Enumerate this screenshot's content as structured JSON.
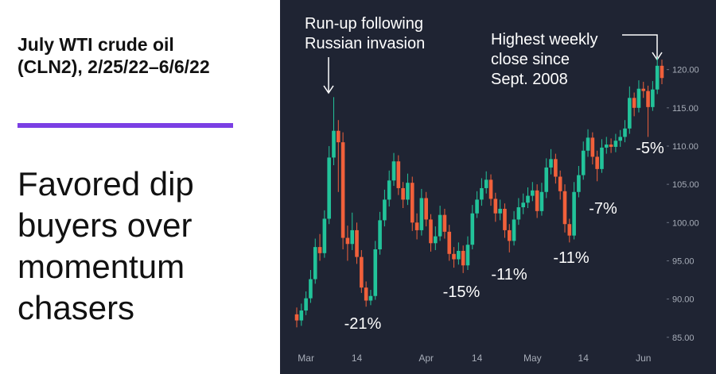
{
  "chart_data": {
    "type": "candlestick",
    "title": "July WTI crude oil (CLN2), 2/25/22–6/6/22",
    "subtitle": "Favored dip buyers over momentum chasers",
    "categories": [
      null,
      null,
      "Mar",
      null,
      null,
      null,
      null,
      null,
      null,
      null,
      null,
      null,
      null,
      "14",
      null,
      null,
      null,
      null,
      null,
      null,
      null,
      null,
      null,
      null,
      null,
      null,
      null,
      null,
      "Apr",
      null,
      null,
      null,
      null,
      null,
      null,
      null,
      null,
      null,
      null,
      "14",
      null,
      null,
      null,
      null,
      null,
      null,
      null,
      null,
      null,
      null,
      null,
      "May",
      null,
      null,
      null,
      null,
      null,
      null,
      null,
      null,
      null,
      null,
      "14",
      null,
      null,
      null,
      null,
      null,
      null,
      null,
      null,
      null,
      null,
      null,
      null,
      "Jun",
      null,
      null,
      null,
      null
    ],
    "open": [
      88.0,
      87.2,
      88.5,
      90.1,
      92.6,
      96.8,
      96.0,
      100.5,
      108.5,
      112.0,
      110.5,
      98.0,
      97.2,
      99.0,
      95.5,
      91.5,
      89.8,
      90.4,
      96.5,
      100.3,
      103.0,
      105.5,
      108.0,
      104.5,
      103.0,
      105.2,
      100.0,
      99.0,
      103.2,
      100.4,
      97.3,
      98.2,
      101.0,
      98.8,
      95.9,
      95.2,
      96.3,
      94.4,
      97.1,
      101.2,
      103.0,
      104.5,
      105.6,
      103.1,
      101.2,
      101.8,
      99.0,
      97.6,
      100.4,
      102.0,
      102.6,
      103.5,
      104.2,
      101.5,
      104.0,
      107.2,
      108.3,
      106.0,
      104.1,
      99.8,
      98.3,
      104.0,
      106.2,
      109.4,
      111.1,
      108.6,
      107.0,
      109.8,
      110.2,
      109.9,
      110.7,
      111.2,
      112.3,
      116.3,
      115.0,
      117.5,
      117.2,
      115.1,
      117.4,
      120.5
    ],
    "high": [
      88.9,
      89.4,
      91.0,
      93.8,
      97.9,
      98.5,
      101.6,
      110.0,
      116.4,
      113.4,
      111.8,
      99.6,
      101.3,
      100.0,
      96.4,
      92.3,
      91.2,
      97.6,
      101.4,
      104.3,
      106.8,
      109.1,
      108.8,
      105.3,
      106.4,
      106.0,
      101.2,
      104.4,
      104.0,
      101.1,
      99.5,
      102.2,
      101.8,
      99.7,
      96.8,
      97.4,
      97.0,
      98.2,
      102.3,
      104.1,
      105.8,
      106.7,
      106.3,
      103.9,
      103.0,
      102.5,
      99.8,
      101.5,
      103.2,
      103.8,
      104.6,
      105.3,
      105.0,
      105.2,
      108.4,
      109.6,
      109.0,
      106.8,
      105.0,
      100.5,
      105.3,
      107.4,
      110.6,
      112.2,
      111.8,
      109.4,
      110.9,
      111.2,
      111.0,
      111.6,
      112.1,
      113.4,
      117.8,
      117.0,
      118.6,
      118.4,
      117.9,
      118.5,
      121.6,
      121.3
    ],
    "low": [
      86.3,
      86.5,
      87.9,
      89.5,
      92.0,
      95.0,
      95.4,
      99.8,
      107.5,
      104.0,
      96.5,
      95.0,
      96.4,
      94.6,
      90.8,
      89.0,
      89.2,
      89.9,
      95.8,
      99.5,
      102.1,
      104.8,
      103.6,
      101.9,
      102.3,
      98.9,
      97.8,
      98.3,
      99.5,
      96.2,
      96.4,
      97.6,
      97.9,
      95.0,
      94.1,
      94.5,
      93.4,
      93.8,
      96.5,
      100.6,
      102.2,
      103.8,
      102.2,
      100.1,
      100.3,
      98.0,
      96.1,
      97.0,
      99.7,
      101.1,
      101.9,
      102.8,
      100.6,
      100.9,
      103.2,
      106.3,
      105.1,
      103.0,
      98.7,
      97.4,
      97.8,
      103.3,
      105.6,
      108.6,
      107.6,
      105.4,
      106.5,
      109.0,
      109.1,
      109.2,
      109.9,
      110.5,
      111.6,
      113.9,
      114.4,
      116.3,
      111.2,
      114.6,
      116.8,
      118.1
    ],
    "close": [
      87.2,
      88.5,
      90.1,
      92.6,
      96.8,
      96.0,
      100.5,
      108.5,
      112.0,
      110.5,
      98.0,
      97.2,
      99.0,
      95.5,
      91.5,
      89.8,
      90.4,
      96.5,
      100.3,
      103.0,
      105.5,
      108.0,
      104.5,
      103.0,
      105.2,
      100.0,
      99.0,
      103.2,
      100.4,
      97.3,
      98.2,
      101.0,
      98.8,
      95.9,
      95.2,
      96.3,
      94.4,
      97.1,
      101.2,
      103.0,
      104.5,
      105.6,
      103.1,
      101.2,
      101.8,
      99.0,
      97.6,
      100.4,
      102.0,
      102.6,
      103.5,
      104.2,
      101.5,
      104.0,
      107.2,
      108.3,
      106.0,
      104.1,
      99.8,
      98.3,
      104.0,
      106.2,
      109.4,
      111.1,
      108.6,
      107.0,
      109.8,
      110.2,
      109.9,
      110.7,
      111.2,
      112.3,
      116.3,
      115.0,
      117.5,
      117.2,
      115.1,
      117.4,
      120.5,
      118.9
    ],
    "up_color": "#22c39a",
    "down_color": "#f0603b",
    "background": "#1f2433",
    "ylim": [
      80.2,
      129.1
    ],
    "yticks": [
      {
        "value": 85,
        "label": "85.00"
      },
      {
        "value": 90,
        "label": "90.00"
      },
      {
        "value": 95,
        "label": "95.00"
      },
      {
        "value": 100,
        "label": "100.00"
      },
      {
        "value": 105,
        "label": "105.00"
      },
      {
        "value": 110,
        "label": "110.00"
      },
      {
        "value": 115,
        "label": "115.00"
      },
      {
        "value": 120,
        "label": "120.00"
      }
    ],
    "annotations": [
      {
        "lines": [
          "Run-up following",
          "Russian invasion"
        ]
      },
      {
        "lines": [
          "Highest weekly",
          "close since",
          "Sept. 2008"
        ]
      },
      {
        "lines": [
          "-21%"
        ]
      },
      {
        "lines": [
          "-15%"
        ]
      },
      {
        "lines": [
          "-11%"
        ]
      },
      {
        "lines": [
          "-11%"
        ]
      },
      {
        "lines": [
          "-7%"
        ]
      },
      {
        "lines": [
          "-5%"
        ]
      }
    ]
  }
}
